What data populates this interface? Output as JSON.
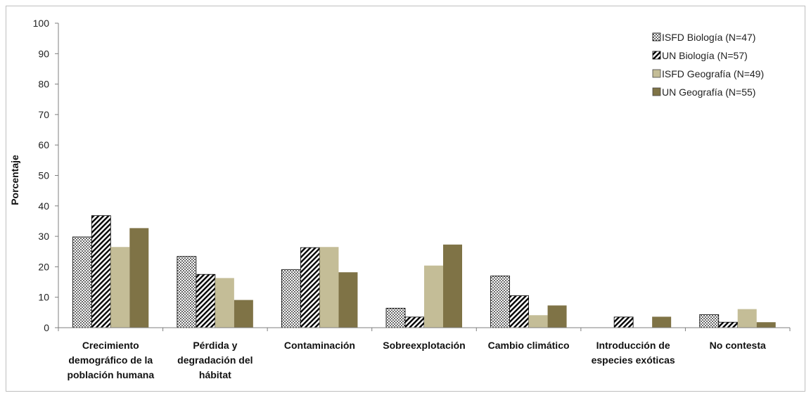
{
  "chart_data": {
    "type": "bar",
    "title": "",
    "xlabel": "",
    "ylabel": "Porcentaje",
    "ylim": [
      0,
      100
    ],
    "yticks": [
      0,
      10,
      20,
      30,
      40,
      50,
      60,
      70,
      80,
      90,
      100
    ],
    "grid": false,
    "legend_position": "top-right",
    "categories": [
      [
        "Crecimiento",
        "demográfico de la",
        "población humana"
      ],
      [
        "Pérdida y",
        "degradación del",
        "hábitat"
      ],
      [
        "Contaminación"
      ],
      [
        "Sobreexplotación"
      ],
      [
        "Cambio climático"
      ],
      [
        "Introducción de",
        "especies exóticas"
      ],
      [
        "No contesta"
      ]
    ],
    "series": [
      {
        "name": "ISFD Biología (N=47)",
        "pattern": "dots",
        "color": "#000000",
        "values": [
          29.8,
          23.4,
          19.1,
          6.4,
          17.0,
          0,
          4.3
        ]
      },
      {
        "name": "UN Biología (N=57)",
        "pattern": "diagonal",
        "color": "#000000",
        "values": [
          36.8,
          17.5,
          26.3,
          3.5,
          10.5,
          3.5,
          1.8
        ]
      },
      {
        "name": "ISFD Geografía (N=49)",
        "pattern": "solid",
        "color": "#c4bd97",
        "values": [
          26.5,
          16.3,
          26.5,
          20.4,
          4.1,
          0,
          6.1
        ]
      },
      {
        "name": "UN Geografía (N=55)",
        "pattern": "solid",
        "color": "#7f7346",
        "values": [
          32.7,
          9.1,
          18.2,
          27.3,
          7.3,
          3.6,
          1.8
        ]
      }
    ]
  }
}
